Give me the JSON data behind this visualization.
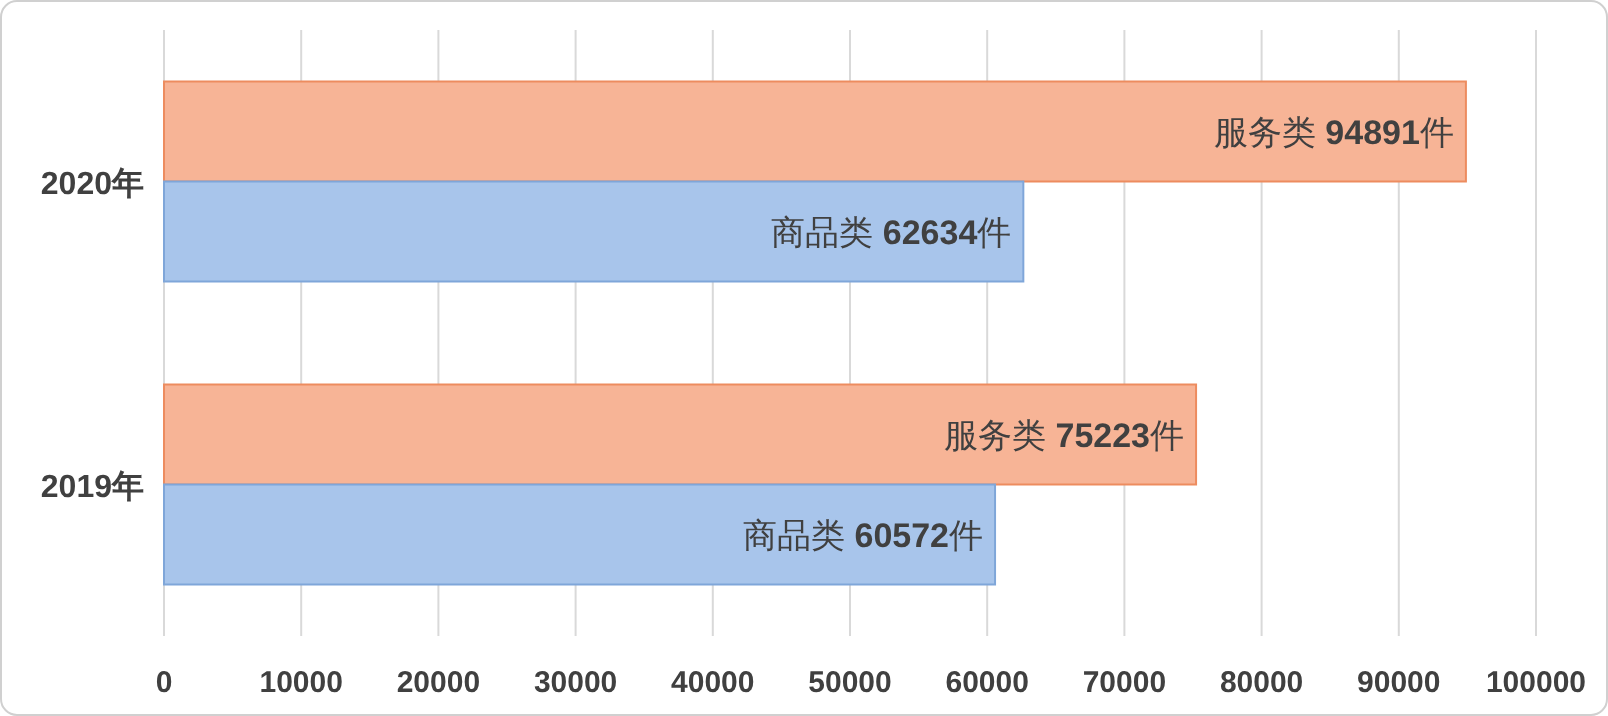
{
  "chart_data": {
    "type": "bar",
    "orientation": "horizontal",
    "categories": [
      "2020年",
      "2019年"
    ],
    "series": [
      {
        "color": "#f7b496",
        "values": [
          94891,
          75223
        ],
        "value_labels": [
          "服务类 **94891**件",
          "服务类 **75223**件"
        ]
      },
      {
        "color": "#a8c5eb",
        "values": [
          62634,
          60572
        ],
        "value_labels": [
          "商品类 **62634**件",
          "商品类 **60572**件"
        ]
      }
    ],
    "xlim": [
      0,
      100000
    ],
    "xticks": [
      0,
      10000,
      20000,
      30000,
      40000,
      50000,
      60000,
      70000,
      80000,
      90000,
      100000
    ],
    "grid": "x"
  }
}
